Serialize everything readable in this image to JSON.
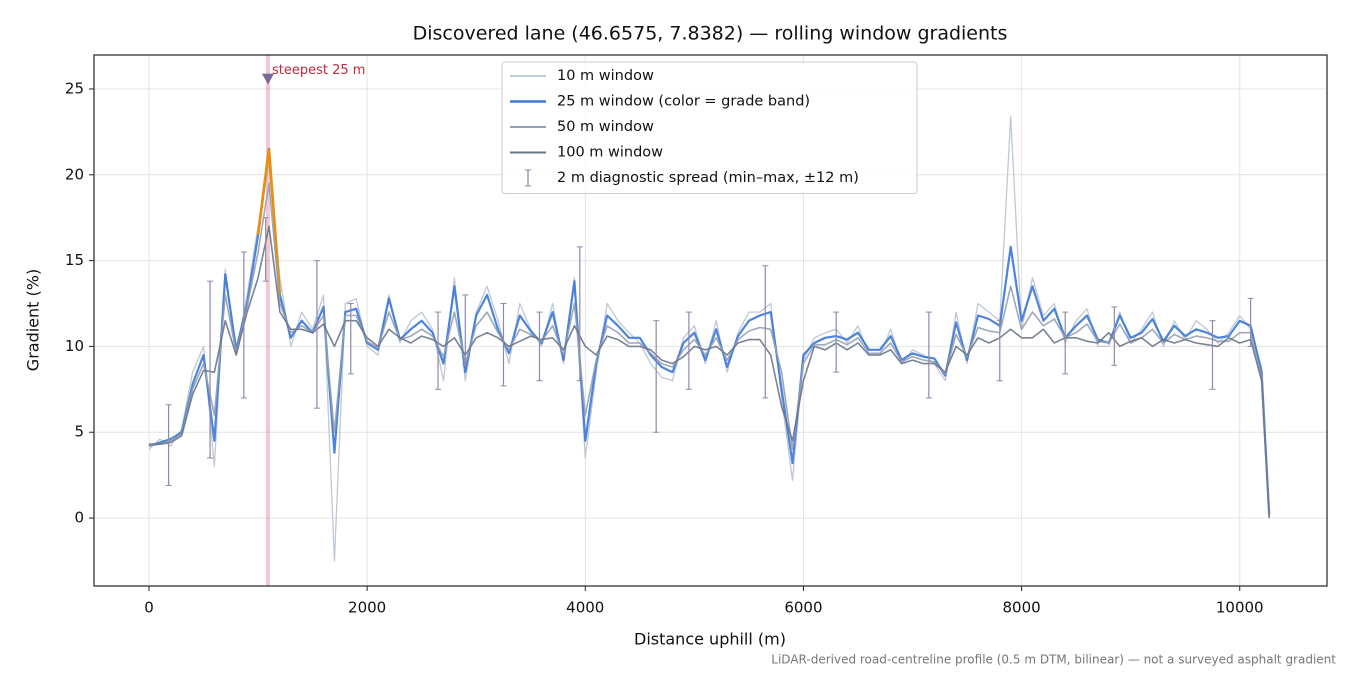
{
  "chart_data": {
    "type": "line",
    "title": "Discovered lane (46.6575, 7.8382) — rolling window gradients",
    "x_label": "Distance uphill (m)",
    "y_label": "Gradient (%)",
    "footnote": "LiDAR-derived road-centreline profile (0.5 m DTM, bilinear) — not a surveyed asphalt gradient",
    "xlim": [
      -504,
      10800
    ],
    "ylim": [
      -3.96,
      26.98
    ],
    "xticks": [
      0,
      2000,
      4000,
      6000,
      8000,
      10000
    ],
    "yticks": [
      0,
      5,
      10,
      15,
      20,
      25
    ],
    "grid": true,
    "legend": "upper center",
    "x": [
      0,
      100,
      200,
      300,
      400,
      500,
      600,
      700,
      800,
      900,
      1000,
      1100,
      1200,
      1300,
      1400,
      1500,
      1600,
      1700,
      1800,
      1900,
      2000,
      2100,
      2200,
      2300,
      2400,
      2500,
      2600,
      2700,
      2800,
      2900,
      3000,
      3100,
      3200,
      3300,
      3400,
      3500,
      3600,
      3700,
      3800,
      3900,
      4000,
      4100,
      4200,
      4300,
      4400,
      4500,
      4600,
      4700,
      4800,
      4900,
      5000,
      5100,
      5200,
      5300,
      5400,
      5500,
      5600,
      5700,
      5800,
      5900,
      6000,
      6100,
      6200,
      6300,
      6400,
      6500,
      6600,
      6700,
      6800,
      6900,
      7000,
      7100,
      7200,
      7300,
      7400,
      7500,
      7600,
      7700,
      7800,
      7900,
      8000,
      8100,
      8200,
      8300,
      8400,
      8500,
      8600,
      8700,
      8800,
      8900,
      9000,
      9100,
      9200,
      9300,
      9400,
      9500,
      9600,
      9700,
      9800,
      9900,
      10000,
      10100,
      10200,
      10270
    ],
    "series": [
      {
        "name": "10 m window",
        "color": "#b8c2d2",
        "width": 1.3,
        "values": [
          4,
          4.6,
          4.2,
          5.2,
          8.5,
          10,
          3,
          14.5,
          9.5,
          13,
          17,
          20.5,
          14,
          10,
          12,
          11,
          13,
          -2.5,
          12.5,
          12.8,
          10,
          9.5,
          13,
          10.2,
          11.5,
          12,
          11,
          8,
          14,
          8,
          12,
          13.5,
          11.5,
          9,
          12.5,
          11,
          10,
          12.5,
          9,
          14,
          3.5,
          8.5,
          12.5,
          11.5,
          10.8,
          10.2,
          9,
          8.2,
          8,
          10.5,
          11.2,
          9,
          11.5,
          8.5,
          10.8,
          12,
          12,
          12.5,
          7,
          2.2,
          9.2,
          10.5,
          10.8,
          11,
          10.2,
          11.2,
          9.5,
          9.5,
          11,
          9,
          9.8,
          9.5,
          9,
          8,
          12,
          9,
          12.5,
          12,
          11.5,
          23.4,
          11,
          14,
          11.8,
          12.5,
          10.2,
          11.5,
          12.2,
          10,
          10,
          12,
          10.2,
          11,
          12,
          10,
          11.5,
          10.4,
          11.5,
          11,
          10.2,
          10.8,
          11.8,
          11,
          8.8,
          0.3
        ]
      },
      {
        "name": "25 m window (color = grade band)",
        "color": "#3a78d8",
        "width": 2.2,
        "band_threshold": 20,
        "band_color": "#e8900c",
        "values": [
          4.2,
          4.4,
          4.6,
          5.0,
          7.8,
          9.5,
          4.5,
          14.2,
          9.8,
          12.5,
          16.5,
          21.5,
          13,
          10.5,
          11.5,
          10.8,
          12.3,
          3.8,
          12,
          12.2,
          10.2,
          9.8,
          12.8,
          10.4,
          11,
          11.5,
          10.8,
          9,
          13.5,
          8.5,
          11.8,
          13,
          11,
          9.6,
          11.8,
          10.9,
          10.2,
          12,
          9.2,
          13.8,
          4.5,
          9,
          11.8,
          11.2,
          10.5,
          10.5,
          9.5,
          8.8,
          8.5,
          10.2,
          10.8,
          9.2,
          11,
          8.8,
          10.6,
          11.5,
          11.8,
          12,
          7.5,
          3.2,
          9.5,
          10.2,
          10.5,
          10.6,
          10.4,
          10.8,
          9.8,
          9.8,
          10.6,
          9.2,
          9.6,
          9.4,
          9.3,
          8.3,
          11.4,
          9.2,
          11.8,
          11.6,
          11.2,
          15.8,
          11.5,
          13.5,
          11.5,
          12.2,
          10.5,
          11.2,
          11.8,
          10.4,
          10.2,
          11.8,
          10.5,
          10.8,
          11.6,
          10.3,
          11.2,
          10.6,
          11,
          10.8,
          10.5,
          10.6,
          11.5,
          11.2,
          8.5,
          0.2
        ]
      },
      {
        "name": "50 m window",
        "color": "#94a0b4",
        "width": 1.6,
        "values": [
          4.2,
          4.3,
          4.5,
          4.9,
          7.5,
          9,
          6,
          13,
          9.6,
          12.3,
          15.5,
          19.5,
          12.5,
          10.8,
          11.2,
          10.8,
          11.8,
          5,
          11.8,
          11.8,
          10.3,
          9.9,
          12,
          10.4,
          10.6,
          11,
          10.6,
          9.4,
          12,
          9,
          11.2,
          12,
          10.8,
          9.8,
          11,
          10.7,
          10.3,
          11.2,
          9.5,
          12.5,
          6,
          9.2,
          11.2,
          10.8,
          10.2,
          10.2,
          9.6,
          9,
          8.8,
          9.8,
          10.4,
          9.5,
          10.5,
          9.2,
          10.4,
          10.9,
          11.1,
          11,
          8.5,
          4,
          9,
          10.1,
          10.1,
          10.4,
          10.1,
          10.5,
          9.6,
          9.6,
          10.2,
          9.1,
          9.4,
          9.2,
          9.1,
          8.4,
          10.7,
          9.4,
          11.1,
          10.9,
          10.8,
          13.5,
          11,
          12,
          11.2,
          11.6,
          10.5,
          10.8,
          11.3,
          10.3,
          10.2,
          11.3,
          10.2,
          10.5,
          11,
          10.2,
          10.7,
          10.4,
          10.6,
          10.5,
          10.3,
          10.3,
          10.8,
          10.8,
          8.2,
          0.1
        ]
      },
      {
        "name": "100 m window",
        "color": "#6a7688",
        "width": 1.6,
        "values": [
          4.3,
          4.3,
          4.4,
          4.8,
          7.2,
          8.6,
          8.5,
          11.5,
          9.5,
          12,
          14,
          17,
          12,
          11,
          11,
          10.8,
          11.3,
          10,
          11.5,
          11.5,
          10.5,
          10,
          11,
          10.5,
          10.2,
          10.6,
          10.4,
          10,
          10.5,
          9.5,
          10.5,
          10.8,
          10.5,
          10,
          10.3,
          10.6,
          10.4,
          10.5,
          9.8,
          11.2,
          10,
          9.5,
          10.6,
          10.4,
          10,
          10,
          9.8,
          9.2,
          9,
          9.4,
          10,
          9.8,
          10,
          9.5,
          10.2,
          10.4,
          10.4,
          9.5,
          6.5,
          4.5,
          8,
          10,
          9.8,
          10.2,
          9.8,
          10.2,
          9.5,
          9.5,
          9.8,
          9,
          9.2,
          9,
          9,
          8.5,
          10,
          9.5,
          10.5,
          10.2,
          10.5,
          11,
          10.5,
          10.5,
          11,
          10.2,
          10.5,
          10.5,
          10.3,
          10.2,
          10.8,
          10,
          10.3,
          10.5,
          10,
          10.4,
          10.2,
          10.4,
          10.2,
          10.1,
          10,
          10.5,
          10.2,
          10.4,
          8,
          0
        ]
      }
    ],
    "errorbars": {
      "name": "2 m diagnostic spread (min–max, ±12 m)",
      "color": "#9088aa",
      "x": [
        180,
        560,
        870,
        1070,
        1540,
        1850,
        2650,
        2900,
        3250,
        3580,
        3950,
        4650,
        4950,
        5650,
        6300,
        7150,
        7800,
        8400,
        8850,
        9750,
        10100
      ],
      "low": [
        1.9,
        3.5,
        7,
        13.8,
        6.4,
        8.4,
        7.5,
        8.9,
        7.7,
        8,
        8,
        5,
        7.5,
        7,
        8.5,
        7,
        8,
        8.4,
        8.9,
        7.5,
        10
      ],
      "high": [
        6.6,
        13.8,
        15.5,
        17.5,
        15,
        12.5,
        12,
        13,
        12.5,
        12,
        15.8,
        11.5,
        12,
        14.7,
        12,
        12,
        11.5,
        12,
        12.3,
        11.5,
        12.8
      ]
    },
    "highlight": {
      "label": "steepest 25 m",
      "x": 1091,
      "value": 25.6,
      "color": "#e0607a",
      "label_color": "#c0283c"
    }
  }
}
